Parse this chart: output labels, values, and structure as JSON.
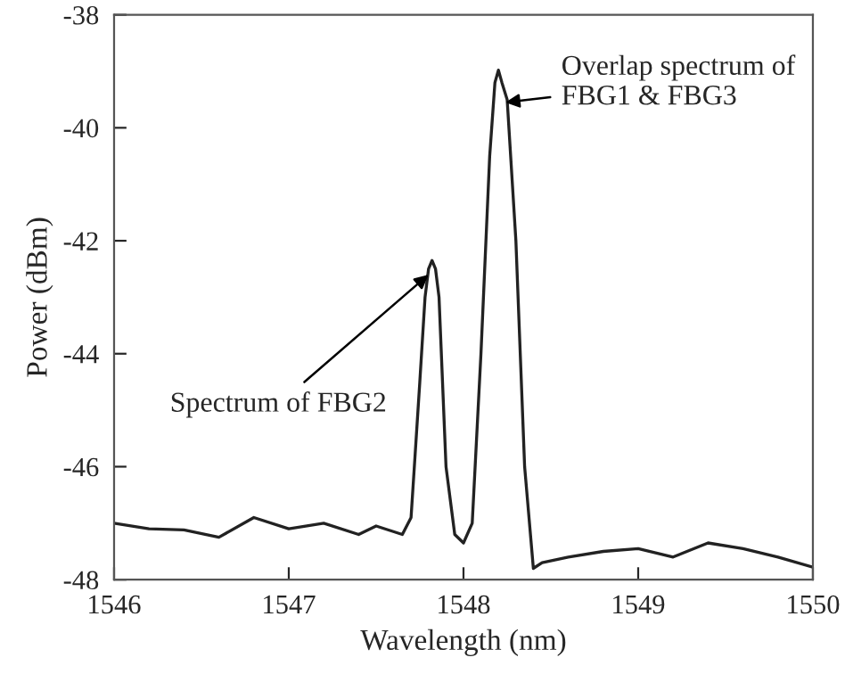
{
  "chart_data": {
    "type": "line",
    "xlabel": "Wavelength (nm)",
    "ylabel": "Power (dBm)",
    "x": [
      1546.0,
      1546.2,
      1546.4,
      1546.6,
      1546.8,
      1547.0,
      1547.2,
      1547.4,
      1547.5,
      1547.65,
      1547.7,
      1547.75,
      1547.78,
      1547.8,
      1547.82,
      1547.84,
      1547.86,
      1547.9,
      1547.95,
      1548.0,
      1548.05,
      1548.1,
      1548.15,
      1548.18,
      1548.2,
      1548.22,
      1548.25,
      1548.3,
      1548.35,
      1548.4,
      1548.45,
      1548.6,
      1548.8,
      1549.0,
      1549.2,
      1549.4,
      1549.6,
      1549.8,
      1550.0
    ],
    "series": [
      {
        "color": "#222222",
        "values": [
          -47.0,
          -47.1,
          -47.12,
          -47.25,
          -46.9,
          -47.1,
          -47.0,
          -47.2,
          -47.05,
          -47.2,
          -46.9,
          -44.5,
          -43.0,
          -42.5,
          -42.35,
          -42.5,
          -43.0,
          -46.0,
          -47.2,
          -47.35,
          -47.0,
          -44.0,
          -40.5,
          -39.2,
          -38.98,
          -39.2,
          -39.5,
          -42.0,
          -46.0,
          -47.8,
          -47.7,
          -47.6,
          -47.5,
          -47.45,
          -47.6,
          -47.35,
          -47.45,
          -47.6,
          -47.78
        ]
      }
    ],
    "xlim": [
      1546,
      1550
    ],
    "xticks": [
      1546,
      1547,
      1548,
      1549,
      1550
    ],
    "ylim": [
      -48,
      -38
    ],
    "yticks": [
      -48,
      -46,
      -44,
      -42,
      -40,
      -38
    ],
    "grid": false,
    "marker": "none",
    "line_style": "solid",
    "annotations": [
      {
        "text": "Spectrum of FBG2",
        "x": 1547.8,
        "y": -42.6
      },
      {
        "text": "Overlap spectrum of\nFBG1 & FBG3",
        "x": 1548.24,
        "y": -39.55
      }
    ]
  }
}
